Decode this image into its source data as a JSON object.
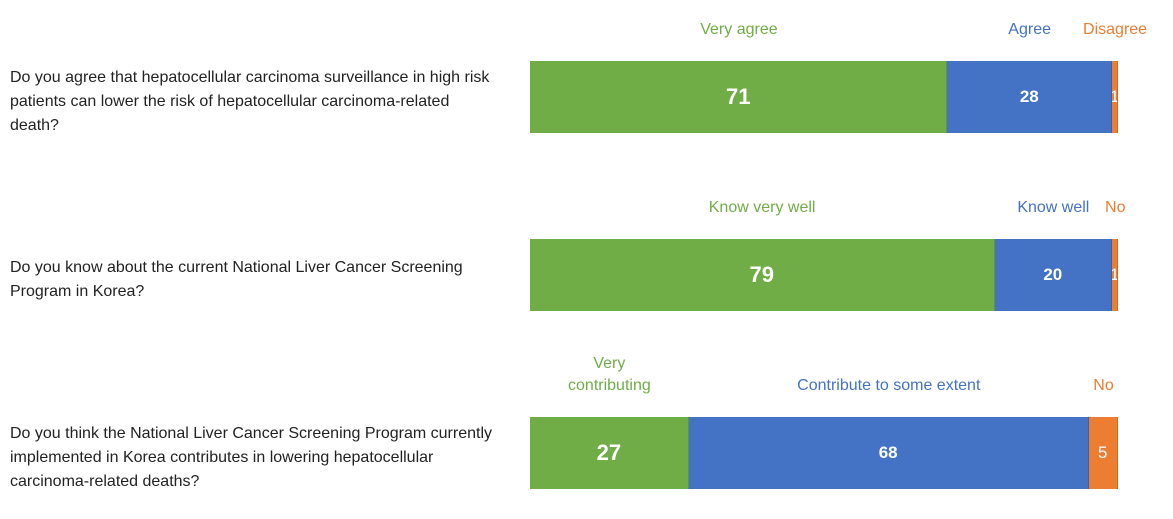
{
  "chart_data": [
    {
      "type": "stacked_bar",
      "categories": [
        "Do you agree that hepatocellular carcinoma surveillance in high risk patients can lower the risk of hepatocellular carcinoma-related death?"
      ],
      "series": [
        {
          "name": "Very agree",
          "color": "#70ad47",
          "values": [
            71
          ]
        },
        {
          "name": "Agree",
          "color": "#4472c4",
          "values": [
            28
          ]
        },
        {
          "name": "Disagree",
          "color": "#ed7d31",
          "values": [
            1
          ]
        }
      ]
    },
    {
      "type": "stacked_bar",
      "categories": [
        "Do you know about the current National Liver Cancer Screening Program in Korea?"
      ],
      "series": [
        {
          "name": "Know very well",
          "color": "#70ad47",
          "values": [
            79
          ]
        },
        {
          "name": "Know well",
          "color": "#4472c4",
          "values": [
            20
          ]
        },
        {
          "name": "No",
          "color": "#ed7d31",
          "values": [
            1
          ]
        }
      ]
    },
    {
      "type": "stacked_bar",
      "categories": [
        "Do you think the National Liver Cancer Screening Program currently implemented in Korea contributes in lowering hepatocellular carcinoma-related deaths?"
      ],
      "series": [
        {
          "name": "Very contributing",
          "color": "#70ad47",
          "values": [
            27
          ]
        },
        {
          "name": "Contribute to some extent",
          "color": "#4472c4",
          "values": [
            68
          ]
        },
        {
          "name": "No",
          "color": "#ed7d31",
          "values": [
            5
          ]
        }
      ]
    }
  ]
}
